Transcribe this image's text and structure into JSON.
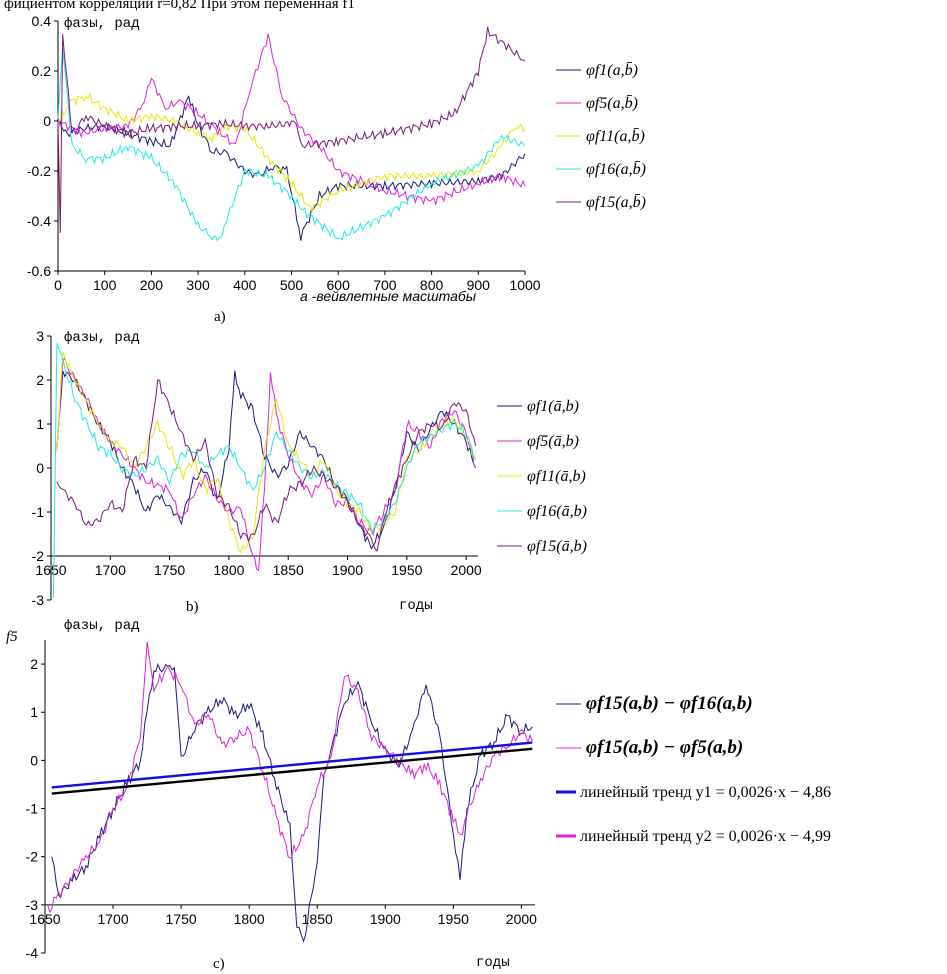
{
  "header_text": "фициентом корреляции r=0,82 При этом переменная f1",
  "chart_data": [
    {
      "panel": "a)",
      "type": "line",
      "ylabel": "фазы, рад",
      "xlabel": "a -вейвлетные масштабы",
      "xlim": [
        0,
        1000
      ],
      "ylim": [
        -0.6,
        0.4
      ],
      "x_ticks": [
        "0",
        "100",
        "200",
        "300",
        "400",
        "500",
        "600",
        "700",
        "800",
        "900",
        "1000"
      ],
      "y_ticks": [
        "0.4",
        "0.2",
        "0",
        "-0.2",
        "-0.4",
        "-0.6"
      ],
      "legend_position": "right",
      "series": [
        {
          "name": "φf1(a,b̄)",
          "color": "#1a1a7a",
          "x": [
            0,
            20,
            60,
            100,
            150,
            200,
            240,
            280,
            300,
            330,
            360,
            400,
            430,
            460,
            490,
            520,
            560,
            600,
            700,
            800,
            900,
            950,
            1000
          ],
          "y": [
            0.0,
            -0.05,
            -0.03,
            -0.02,
            -0.05,
            -0.08,
            -0.1,
            0.1,
            -0.02,
            -0.12,
            -0.13,
            -0.2,
            -0.22,
            -0.18,
            -0.2,
            -0.46,
            -0.3,
            -0.26,
            -0.26,
            -0.25,
            -0.24,
            -0.22,
            -0.13
          ]
        },
        {
          "name": "φf5(a,b̄)",
          "color": "#e020e0",
          "x": [
            0,
            50,
            100,
            150,
            180,
            200,
            230,
            260,
            300,
            330,
            350,
            380,
            410,
            450,
            480,
            520,
            560,
            600,
            700,
            800,
            900,
            950,
            1000
          ],
          "y": [
            0.0,
            -0.05,
            -0.03,
            -0.02,
            0.06,
            0.17,
            0.05,
            0.08,
            0.03,
            -0.02,
            -0.05,
            -0.1,
            0.12,
            0.34,
            0.1,
            -0.03,
            -0.1,
            -0.2,
            -0.28,
            -0.32,
            -0.25,
            -0.22,
            -0.26
          ]
        },
        {
          "name": "φf11(a,b̄)",
          "color": "#e8e800",
          "x": [
            0,
            30,
            60,
            100,
            150,
            200,
            250,
            300,
            330,
            360,
            400,
            450,
            500,
            540,
            600,
            700,
            800,
            900,
            950,
            980,
            1000
          ],
          "y": [
            0.0,
            0.08,
            0.1,
            0.05,
            0.0,
            0.02,
            0.0,
            -0.05,
            -0.07,
            -0.02,
            -0.03,
            -0.15,
            -0.25,
            -0.35,
            -0.28,
            -0.22,
            -0.22,
            -0.2,
            -0.1,
            -0.02,
            -0.03
          ]
        },
        {
          "name": "φf16(a,b̄)",
          "color": "#20e8e8",
          "x": [
            0,
            10,
            30,
            60,
            100,
            150,
            200,
            250,
            300,
            330,
            345,
            360,
            400,
            450,
            500,
            520,
            600,
            700,
            800,
            900,
            950,
            1000
          ],
          "y": [
            0.0,
            0.3,
            -0.1,
            -0.15,
            -0.15,
            -0.1,
            -0.15,
            -0.25,
            -0.42,
            -0.46,
            -0.48,
            -0.4,
            -0.2,
            -0.22,
            -0.3,
            -0.35,
            -0.47,
            -0.38,
            -0.25,
            -0.18,
            -0.06,
            -0.1
          ]
        },
        {
          "name": "φf15(a,b̄)",
          "color": "#7a1a7a",
          "x": [
            0,
            5,
            10,
            30,
            60,
            100,
            150,
            200,
            250,
            300,
            350,
            400,
            450,
            500,
            510,
            520,
            600,
            700,
            800,
            850,
            900,
            920,
            960,
            1000
          ],
          "y": [
            0.0,
            -0.45,
            0.35,
            -0.05,
            0.02,
            -0.02,
            -0.05,
            -0.03,
            -0.02,
            -0.02,
            -0.01,
            -0.02,
            -0.02,
            -0.01,
            0.0,
            -0.1,
            -0.08,
            -0.05,
            -0.01,
            0.03,
            0.2,
            0.36,
            0.3,
            0.24
          ]
        }
      ]
    },
    {
      "panel": "b)",
      "type": "line",
      "ylabel": "фазы, рад",
      "xlabel": "годы",
      "xlim": [
        1650,
        2010
      ],
      "ylim": [
        -3,
        3
      ],
      "x_ticks": [
        "1650",
        "1700",
        "1750",
        "1800",
        "1850",
        "1900",
        "1950",
        "2000"
      ],
      "y_ticks": [
        "3",
        "2",
        "1",
        "0",
        "-1",
        "-2",
        "-3"
      ],
      "legend_position": "right",
      "series": [
        {
          "name": "φf1(ā,b)",
          "color": "#1a1a7a",
          "x": [
            1655,
            1660,
            1670,
            1680,
            1690,
            1700,
            1710,
            1720,
            1730,
            1740,
            1750,
            1760,
            1770,
            1780,
            1790,
            1800,
            1805,
            1810,
            1820,
            1830,
            1840,
            1850,
            1860,
            1870,
            1880,
            1890,
            1900,
            1910,
            1920,
            1930,
            1940,
            1950,
            1960,
            1970,
            1980,
            1990,
            2000,
            2008
          ],
          "y": [
            0.4,
            2.2,
            2.0,
            1.5,
            1.0,
            0.6,
            0.0,
            -0.4,
            -1.0,
            -0.6,
            -0.9,
            -1.2,
            -0.3,
            0.0,
            -0.8,
            0.5,
            2.1,
            1.7,
            1.3,
            0.3,
            -0.2,
            0.1,
            0.8,
            0.5,
            0.2,
            -0.4,
            -0.7,
            -1.3,
            -1.8,
            -1.4,
            -0.5,
            0.8,
            0.4,
            0.9,
            1.3,
            1.0,
            0.6,
            0.0
          ]
        },
        {
          "name": "φf5(ā,b)",
          "color": "#e020e0",
          "x": [
            1655,
            1660,
            1670,
            1680,
            1690,
            1700,
            1710,
            1720,
            1730,
            1740,
            1750,
            1760,
            1770,
            1780,
            1790,
            1800,
            1810,
            1820,
            1825,
            1830,
            1835,
            1840,
            1850,
            1860,
            1870,
            1880,
            1890,
            1900,
            1910,
            1920,
            1930,
            1940,
            1950,
            1960,
            1970,
            1980,
            1990,
            2000,
            2008
          ],
          "y": [
            0.4,
            2.5,
            2.0,
            1.6,
            1.0,
            0.6,
            0.3,
            0.0,
            -0.3,
            -0.4,
            -0.5,
            -1.2,
            -0.6,
            -0.2,
            -0.7,
            -1.0,
            -0.9,
            -2.0,
            -2.3,
            -0.5,
            2.2,
            1.2,
            0.3,
            -0.3,
            -0.6,
            -0.2,
            -0.8,
            -0.8,
            -1.2,
            -1.5,
            -1.0,
            -0.6,
            1.0,
            0.8,
            0.5,
            1.1,
            1.3,
            0.8,
            0.0
          ]
        },
        {
          "name": "φf11(ā,b)",
          "color": "#e8e800",
          "x": [
            1655,
            1660,
            1670,
            1680,
            1690,
            1700,
            1710,
            1720,
            1730,
            1740,
            1750,
            1760,
            1770,
            1780,
            1790,
            1800,
            1810,
            1820,
            1830,
            1840,
            1850,
            1860,
            1870,
            1880,
            1890,
            1900,
            1910,
            1920,
            1930,
            1940,
            1950,
            1960,
            1970,
            1980,
            1990,
            2000,
            2008
          ],
          "y": [
            0.4,
            2.6,
            2.0,
            1.5,
            1.0,
            0.6,
            0.5,
            0.0,
            0.5,
            1.0,
            0.5,
            -0.2,
            0.2,
            -0.5,
            -0.2,
            -1.2,
            -1.9,
            -1.6,
            0.4,
            1.6,
            0.5,
            0.2,
            -0.2,
            0.2,
            -0.5,
            -0.8,
            -1.0,
            -1.4,
            -1.3,
            -1.0,
            0.2,
            0.4,
            0.7,
            1.0,
            1.1,
            0.7,
            0.2
          ]
        },
        {
          "name": "φf16(ā,b)",
          "color": "#20e8e8",
          "x": [
            1652,
            1655,
            1660,
            1670,
            1680,
            1690,
            1700,
            1710,
            1720,
            1730,
            1740,
            1750,
            1760,
            1770,
            1780,
            1790,
            1800,
            1810,
            1820,
            1830,
            1840,
            1850,
            1860,
            1870,
            1880,
            1890,
            1900,
            1910,
            1920,
            1930,
            1940,
            1950,
            1960,
            1970,
            1980,
            1990,
            2000,
            2008
          ],
          "y": [
            -3.0,
            2.9,
            2.4,
            1.6,
            1.0,
            0.5,
            0.3,
            0.0,
            -0.2,
            0.0,
            0.2,
            -0.3,
            0.3,
            0.4,
            0.0,
            0.3,
            0.5,
            0.0,
            -0.5,
            0.0,
            0.8,
            0.4,
            0.0,
            -0.2,
            -0.1,
            -0.4,
            -0.6,
            -0.8,
            -1.4,
            -1.2,
            -0.8,
            0.0,
            0.6,
            0.7,
            0.9,
            1.0,
            0.8,
            0.2
          ]
        },
        {
          "name": "φf15(ā,b)",
          "color": "#7a1a7a",
          "x": [
            1655,
            1660,
            1670,
            1680,
            1690,
            1700,
            1710,
            1720,
            1730,
            1740,
            1750,
            1760,
            1770,
            1780,
            1790,
            1800,
            1810,
            1820,
            1830,
            1840,
            1850,
            1860,
            1870,
            1880,
            1890,
            1900,
            1910,
            1920,
            1925,
            1930,
            1940,
            1950,
            1960,
            1970,
            1980,
            1990,
            2000,
            2008
          ],
          "y": [
            -0.3,
            -0.5,
            -0.8,
            -1.3,
            -1.2,
            -0.8,
            -1.0,
            0.2,
            0.0,
            2.0,
            1.4,
            0.8,
            0.2,
            0.6,
            -0.6,
            -0.9,
            -1.5,
            -1.6,
            -0.8,
            -1.3,
            -0.5,
            -0.4,
            0.0,
            -0.2,
            -0.4,
            -0.8,
            -1.3,
            -1.6,
            -1.9,
            -1.2,
            -0.4,
            0.2,
            0.8,
            1.0,
            0.9,
            1.5,
            1.3,
            0.5
          ]
        }
      ]
    },
    {
      "panel": "c)",
      "type": "line",
      "ylabel": "фазы, рад",
      "y_side_label": "f5",
      "xlabel": "годы",
      "xlim": [
        1650,
        2010
      ],
      "ylim": [
        -4,
        2.5
      ],
      "x_ticks": [
        "1650",
        "1700",
        "1750",
        "1800",
        "1850",
        "1900",
        "1950",
        "2000"
      ],
      "y_ticks": [
        "2",
        "1",
        "0",
        "-1",
        "-2",
        "-3",
        "-4"
      ],
      "legend_position": "right",
      "series": [
        {
          "name": "φf15(a,b) − φf16(a,b)",
          "color": "#1a1a7a",
          "x": [
            1655,
            1660,
            1670,
            1680,
            1690,
            1700,
            1710,
            1720,
            1725,
            1730,
            1740,
            1745,
            1750,
            1760,
            1770,
            1780,
            1790,
            1800,
            1810,
            1820,
            1830,
            1835,
            1840,
            1850,
            1855,
            1860,
            1870,
            1880,
            1890,
            1900,
            1910,
            1920,
            1930,
            1940,
            1950,
            1955,
            1960,
            1970,
            1980,
            1990,
            2000,
            2008
          ],
          "y": [
            -2.0,
            -2.8,
            -2.5,
            -2.2,
            -1.6,
            -1.0,
            -0.5,
            0.0,
            1.0,
            1.9,
            1.9,
            2.0,
            0.0,
            0.7,
            1.0,
            1.3,
            0.9,
            1.2,
            0.5,
            -0.5,
            -1.4,
            -3.4,
            -3.8,
            -2.1,
            -0.3,
            0.2,
            1.2,
            1.6,
            0.8,
            0.2,
            -0.1,
            0.6,
            1.6,
            0.5,
            -1.5,
            -2.5,
            -1.0,
            0.1,
            0.4,
            0.9,
            0.6,
            0.7
          ]
        },
        {
          "name": "φf15(a,b) − φf5(a,b)",
          "color": "#e020e0",
          "x": [
            1652,
            1655,
            1660,
            1670,
            1680,
            1690,
            1700,
            1710,
            1720,
            1725,
            1730,
            1740,
            1750,
            1760,
            1770,
            1780,
            1790,
            1800,
            1810,
            1820,
            1830,
            1840,
            1850,
            1860,
            1870,
            1880,
            1890,
            1900,
            1910,
            1920,
            1930,
            1940,
            1950,
            1955,
            1960,
            1970,
            1980,
            1990,
            2000,
            2008
          ],
          "y": [
            -3.1,
            -3.0,
            -2.8,
            -2.4,
            -2.0,
            -1.7,
            -1.0,
            -0.6,
            0.5,
            2.4,
            1.5,
            1.9,
            1.6,
            0.7,
            1.0,
            0.3,
            0.5,
            0.6,
            -0.2,
            -1.2,
            -2.0,
            -1.6,
            -0.5,
            0.0,
            1.8,
            1.4,
            0.5,
            0.2,
            0.0,
            -0.3,
            -0.1,
            -0.5,
            -1.2,
            -1.6,
            -1.1,
            -0.4,
            0.1,
            0.3,
            0.6,
            0.4
          ]
        },
        {
          "name": "линейный тренд",
          "formula": "y1 = 0,0026·x − 4,86",
          "color": "#1010e0",
          "trend": true,
          "x": [
            1655,
            2008
          ],
          "y": [
            -0.56,
            0.37
          ]
        },
        {
          "name": "линейный тренд",
          "formula": "y2 = 0,0026·x − 4,99",
          "color": "#e020e0",
          "trend": true,
          "x": [
            1655,
            2008
          ],
          "y": [
            -0.69,
            0.24
          ]
        }
      ],
      "trend_display_colors": [
        "#1010e0",
        "#000000"
      ]
    }
  ]
}
